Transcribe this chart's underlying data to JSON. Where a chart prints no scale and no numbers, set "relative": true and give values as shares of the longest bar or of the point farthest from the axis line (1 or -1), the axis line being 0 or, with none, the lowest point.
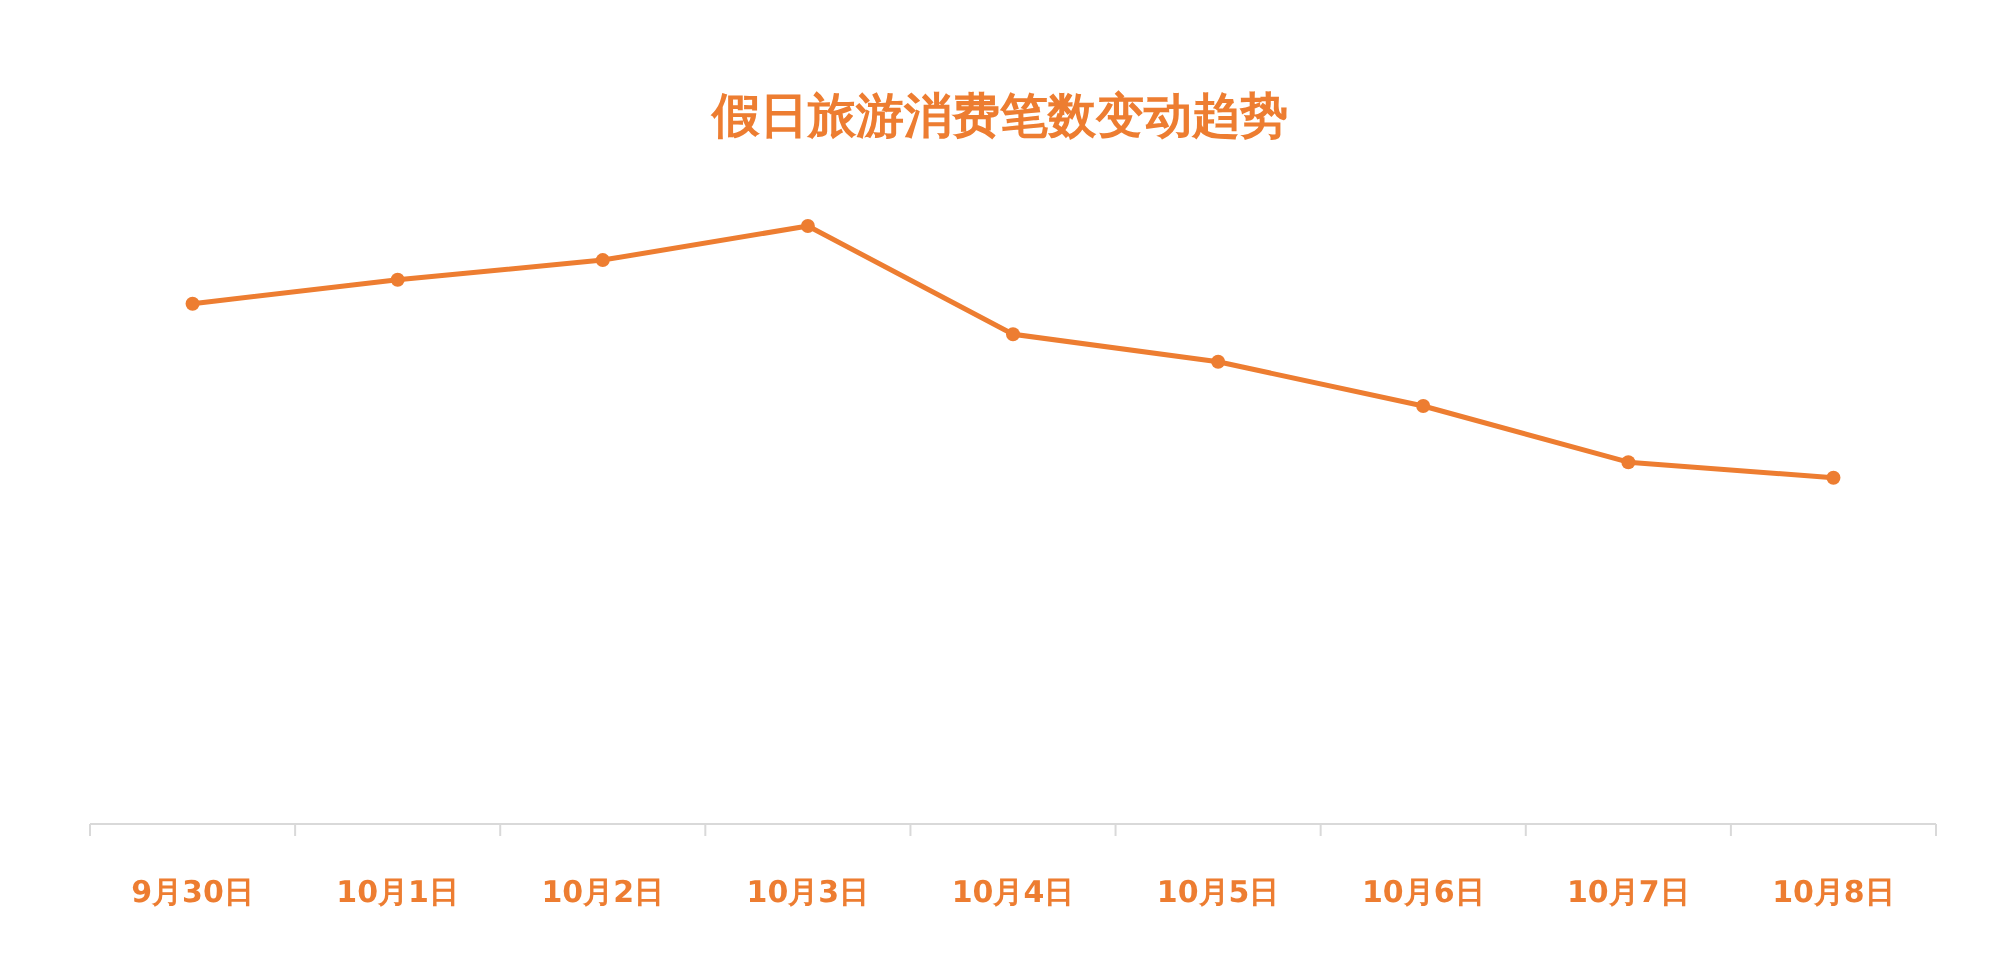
{
  "chart_data": {
    "type": "line",
    "title": "假日旅游消费笔数变动趋势",
    "categories": [
      "9月30日",
      "10月1日",
      "10月2日",
      "10月3日",
      "10月4日",
      "10月5日",
      "10月6日",
      "10月7日",
      "10月8日"
    ],
    "relative": true,
    "marker": "circle",
    "series": [
      {
        "color": "#ed7d31",
        "values": [
          0.87,
          0.91,
          0.943,
          1,
          0.819,
          0.773,
          0.699,
          0.605,
          0.579
        ]
      }
    ]
  }
}
